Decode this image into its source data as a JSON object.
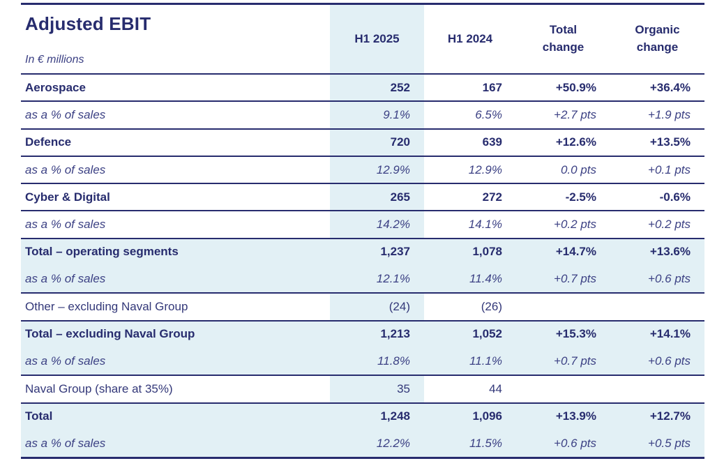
{
  "title": "Adjusted EBIT",
  "subtitle": "In € millions",
  "columns": [
    "H1 2025",
    "H1 2024",
    "Total change",
    "Organic change"
  ],
  "colors": {
    "navy_text": "#272c6e",
    "highlight_blue": "#e2f0f5"
  },
  "rows": [
    {
      "label": "Aerospace",
      "style": "segment",
      "values": [
        "252",
        "167",
        "+50.9%",
        "+36.4%"
      ]
    },
    {
      "label": "as a % of sales",
      "style": "pct",
      "values": [
        "9.1%",
        "6.5%",
        "+2.7 pts",
        "+1.9 pts"
      ]
    },
    {
      "label": "Defence",
      "style": "segment",
      "values": [
        "720",
        "639",
        "+12.6%",
        "+13.5%"
      ]
    },
    {
      "label": "as a % of sales",
      "style": "pct",
      "values": [
        "12.9%",
        "12.9%",
        "0.0 pts",
        "+0.1 pts"
      ]
    },
    {
      "label": "Cyber & Digital",
      "style": "segment",
      "values": [
        "265",
        "272",
        "-2.5%",
        "-0.6%"
      ]
    },
    {
      "label": "as a % of sales",
      "style": "pct",
      "values": [
        "14.2%",
        "14.1%",
        "+0.2 pts",
        "+0.2 pts"
      ]
    },
    {
      "label": "Total – operating segments",
      "style": "total",
      "values": [
        "1,237",
        "1,078",
        "+14.7%",
        "+13.6%"
      ]
    },
    {
      "label": "as a % of sales",
      "style": "total-pct",
      "values": [
        "12.1%",
        "11.4%",
        "+0.7 pts",
        "+0.6 pts"
      ]
    },
    {
      "label": "Other – excluding Naval Group",
      "style": "plain",
      "values": [
        "(24)",
        "(26)",
        "",
        ""
      ]
    },
    {
      "label": "Total – excluding Naval Group",
      "style": "total",
      "values": [
        "1,213",
        "1,052",
        "+15.3%",
        "+14.1%"
      ]
    },
    {
      "label": "as a % of sales",
      "style": "total-pct",
      "values": [
        "11.8%",
        "11.1%",
        "+0.7 pts",
        "+0.6 pts"
      ]
    },
    {
      "label": "Naval Group (share at 35%)",
      "style": "plain",
      "values": [
        "35",
        "44",
        "",
        ""
      ]
    },
    {
      "label": "Total",
      "style": "total",
      "values": [
        "1,248",
        "1,096",
        "+13.9%",
        "+12.7%"
      ]
    },
    {
      "label": "as a % of sales",
      "style": "total-pct",
      "values": [
        "12.2%",
        "11.5%",
        "+0.6 pts",
        "+0.5 pts"
      ]
    }
  ]
}
